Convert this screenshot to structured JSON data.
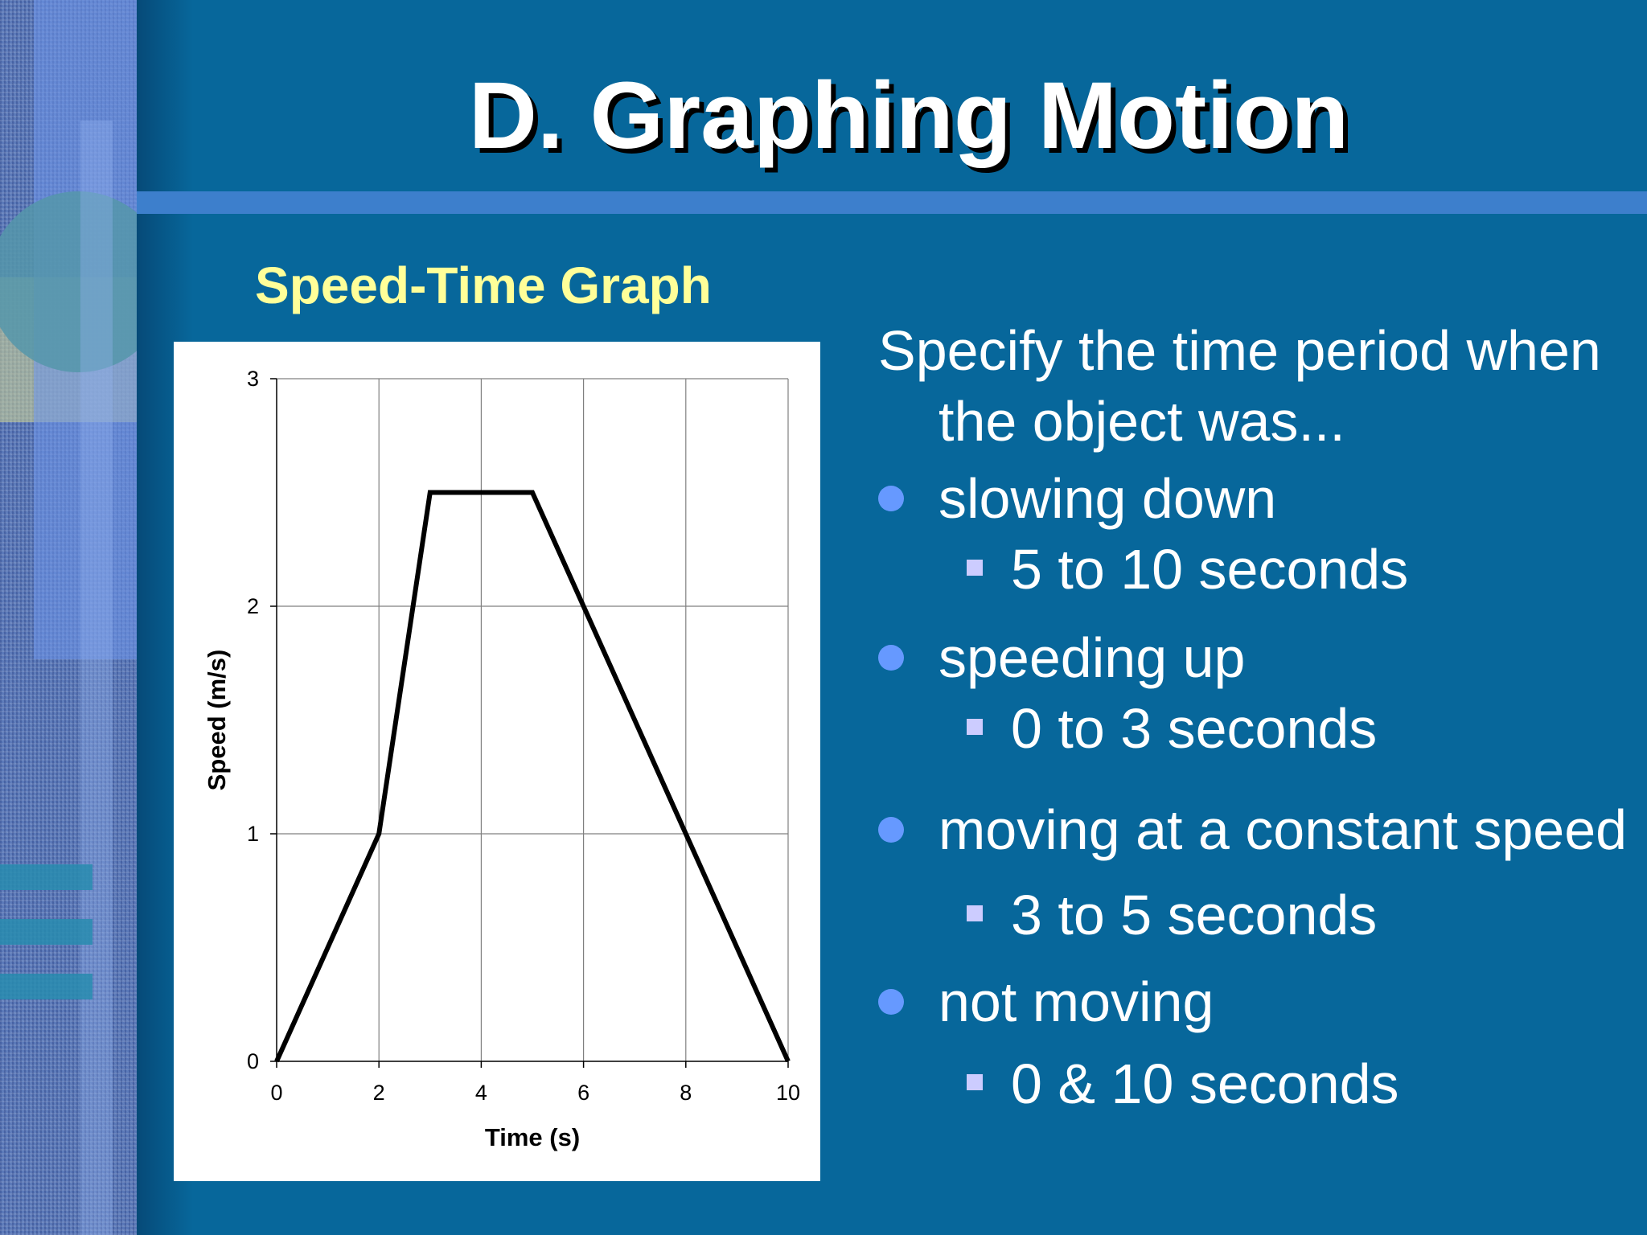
{
  "slide": {
    "title": "D. Graphing Motion",
    "chart_heading": "Speed-Time Graph",
    "intro": "Specify the time period when the object was...",
    "items": [
      {
        "label": "slowing down",
        "answer": "5 to 10 seconds"
      },
      {
        "label": "speeding up",
        "answer": "0 to 3 seconds"
      },
      {
        "label": "moving at a constant speed",
        "answer": "3 to 5 seconds"
      },
      {
        "label": "not moving",
        "answer": "0 & 10 seconds"
      }
    ]
  },
  "colors": {
    "background": "#07679b",
    "title": "#ffffff",
    "chart_heading": "#ffff99",
    "bullet": "#6699ff",
    "sub_bullet": "#ccccff",
    "line": "#000000"
  },
  "chart_data": {
    "type": "line",
    "title": "Speed-Time Graph",
    "xlabel": "Time (s)",
    "ylabel": "Speed (m/s)",
    "xlim": [
      0,
      10
    ],
    "ylim": [
      0,
      3
    ],
    "xticks": [
      0,
      2,
      4,
      6,
      8,
      10
    ],
    "yticks": [
      0,
      1,
      2,
      3
    ],
    "grid": true,
    "legend": "none",
    "series": [
      {
        "x": [
          0,
          2,
          3,
          5,
          10
        ],
        "y": [
          0,
          1,
          2.5,
          2.5,
          0
        ]
      }
    ]
  }
}
